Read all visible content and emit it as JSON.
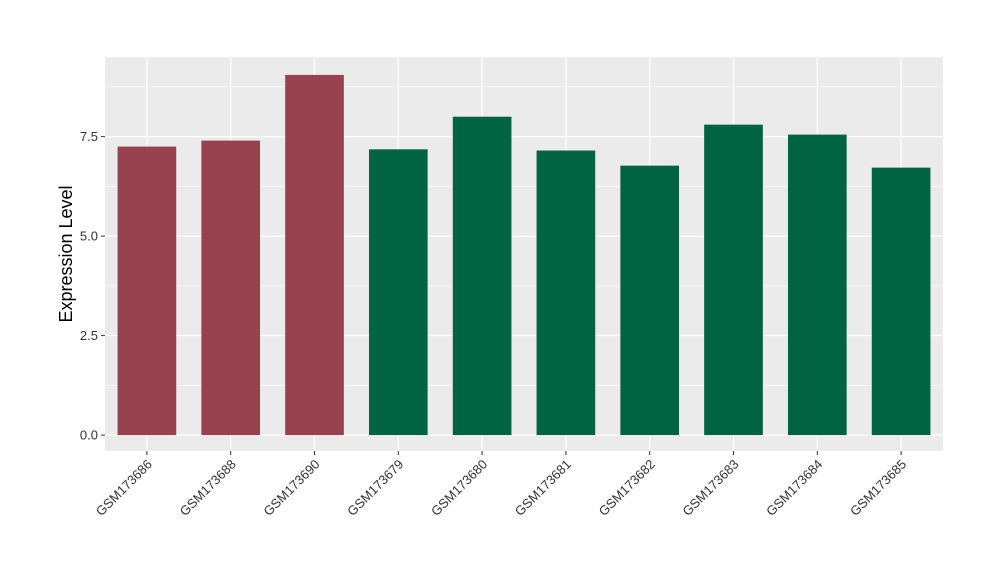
{
  "chart_data": {
    "type": "bar",
    "title": "",
    "xlabel": "",
    "ylabel": "Expression Level",
    "ylim": [
      -0.4,
      9.5
    ],
    "yticks": [
      0.0,
      2.5,
      5.0,
      7.5
    ],
    "ytick_labels": [
      "0.0",
      "2.5",
      "5.0",
      "7.5"
    ],
    "grid": true,
    "legend": "none",
    "panel_background": "#ebebeb",
    "gridline_color": "#ffffff",
    "categories": [
      "GSM173686",
      "GSM173688",
      "GSM173690",
      "GSM173679",
      "GSM173680",
      "GSM173681",
      "GSM173682",
      "GSM173683",
      "GSM173684",
      "GSM173685"
    ],
    "values": [
      7.25,
      7.4,
      9.05,
      7.18,
      8.0,
      7.15,
      6.77,
      7.8,
      7.55,
      6.72
    ],
    "bar_colors": [
      "#99424f",
      "#99424f",
      "#99424f",
      "#006443",
      "#006443",
      "#006443",
      "#006443",
      "#006443",
      "#006443",
      "#006443"
    ]
  }
}
